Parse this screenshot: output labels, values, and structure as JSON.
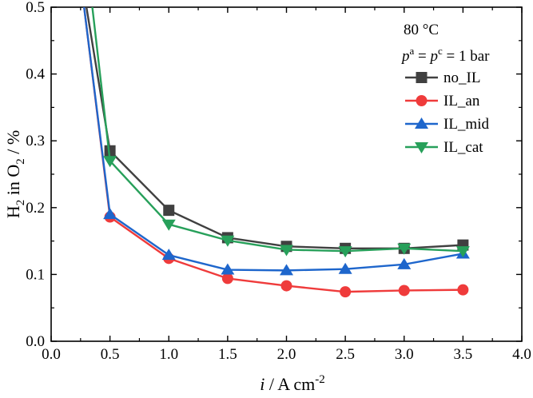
{
  "chart_data": {
    "type": "line",
    "xlabel": "i / A cm-2",
    "xlabel_parts": {
      "var": "i",
      "rest": " / A cm",
      "sup": "-2"
    },
    "ylabel": "H2 in O2 / %",
    "ylabel_parts": {
      "a": "H",
      "sub1": "2",
      "b": " in O",
      "sub2": "2",
      "c": " / %"
    },
    "xlim": [
      0.0,
      4.0
    ],
    "ylim": [
      0.0,
      0.5
    ],
    "xticks": [
      "0.0",
      "0.5",
      "1.0",
      "1.5",
      "2.0",
      "2.5",
      "3.0",
      "3.5",
      "4.0"
    ],
    "yticks": [
      "0.0",
      "0.1",
      "0.2",
      "0.3",
      "0.4",
      "0.5"
    ],
    "grid": false,
    "legend_position": "upper-right",
    "annotations": {
      "temperature": "80 °C",
      "pressure": {
        "p1": "p",
        "sup1": "a",
        "mid": " = ",
        "p2": "p",
        "sup2": "c",
        "tail": " = 1 bar"
      }
    },
    "series": [
      {
        "name": "no_IL",
        "color": "#404040",
        "marker": "square",
        "x": [
          0.3,
          0.5,
          1.0,
          1.5,
          2.0,
          2.5,
          3.0,
          3.5
        ],
        "y": [
          0.5,
          0.285,
          0.196,
          0.155,
          0.142,
          0.139,
          0.139,
          0.144
        ],
        "markers": [
          false,
          true,
          true,
          true,
          true,
          true,
          true,
          true
        ]
      },
      {
        "name": "IL_an",
        "color": "#ef3b3b",
        "marker": "circle",
        "x": [
          0.28,
          0.5,
          1.0,
          1.5,
          2.0,
          2.5,
          3.0,
          3.5
        ],
        "y": [
          0.5,
          0.186,
          0.124,
          0.094,
          0.083,
          0.074,
          0.076,
          0.077
        ],
        "markers": [
          false,
          true,
          true,
          true,
          true,
          true,
          true,
          true
        ]
      },
      {
        "name": "IL_mid",
        "color": "#1e66cc",
        "marker": "triangle-up",
        "x": [
          0.28,
          0.5,
          1.0,
          1.5,
          2.0,
          2.5,
          3.0,
          3.5
        ],
        "y": [
          0.5,
          0.19,
          0.129,
          0.107,
          0.106,
          0.108,
          0.115,
          0.131
        ],
        "markers": [
          false,
          true,
          true,
          true,
          true,
          true,
          true,
          true
        ]
      },
      {
        "name": "IL_cat",
        "color": "#27a05a",
        "marker": "triangle-down",
        "x": [
          0.35,
          0.5,
          1.0,
          1.5,
          2.0,
          2.5,
          3.0,
          3.5
        ],
        "y": [
          0.5,
          0.27,
          0.175,
          0.151,
          0.137,
          0.135,
          0.139,
          0.135
        ],
        "markers": [
          false,
          true,
          true,
          true,
          true,
          true,
          true,
          true
        ]
      }
    ]
  }
}
